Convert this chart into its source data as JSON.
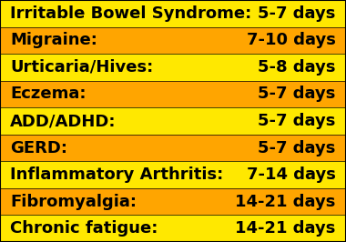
{
  "rows": [
    {
      "condition": "Irritable Bowel Syndrome:",
      "days": "5-7 days",
      "bg": "#FFE800"
    },
    {
      "condition": "Migraine:",
      "days": "7-10 days",
      "bg": "#FFA500"
    },
    {
      "condition": "Urticaria/Hives:",
      "days": "5-8 days",
      "bg": "#FFE800"
    },
    {
      "condition": "Eczema:",
      "days": "5-7 days",
      "bg": "#FFA500"
    },
    {
      "condition": "ADD/ADHD:",
      "days": "5-7 days",
      "bg": "#FFE800"
    },
    {
      "condition": "GERD:",
      "days": "5-7 days",
      "bg": "#FFA500"
    },
    {
      "condition": "Inflammatory Arthritis:",
      "days": "7-14 days",
      "bg": "#FFE800"
    },
    {
      "condition": "Fibromyalgia:",
      "days": "14-21 days",
      "bg": "#FFA500"
    },
    {
      "condition": "Chronic fatigue:",
      "days": "14-21 days",
      "bg": "#FFE800"
    }
  ],
  "text_color": "#000000",
  "font_size": 13,
  "days_font_size": 13,
  "fig_bg": "#FFE800",
  "border_color": "#000000"
}
